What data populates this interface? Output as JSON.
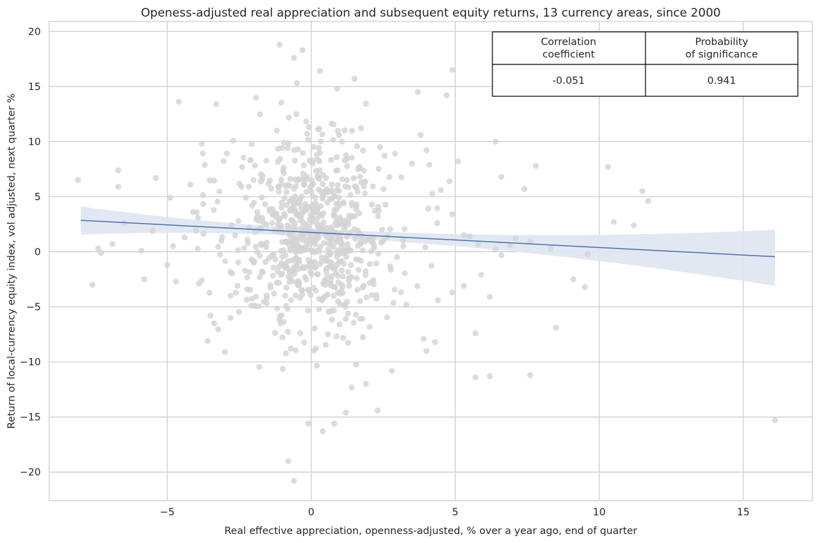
{
  "chart_data": {
    "type": "scatter",
    "title": "Openess-adjusted real appreciation and subsequent equity returns, 13 currency areas, since 2000",
    "xlabel": "Real effective appreciation, openness-adjusted, % over a year ago, end of quarter",
    "ylabel": "Return of local-currency equity index, vol adjusted, next quarter %",
    "xlim": [
      -9.1,
      17.4
    ],
    "ylim": [
      -22.6,
      20.9
    ],
    "xticks": [
      -5,
      0,
      5,
      10,
      15
    ],
    "yticks": [
      -20,
      -15,
      -10,
      -5,
      0,
      5,
      10,
      15,
      20
    ],
    "xtick_labels": [
      "−5",
      "0",
      "5",
      "10",
      "15"
    ],
    "ytick_labels": [
      "−20",
      "−15",
      "−10",
      "−5",
      "0",
      "5",
      "10",
      "15",
      "20"
    ],
    "grid": true,
    "point_color": "#d3d3d3",
    "line_color": "#4c72b0",
    "band_color": "#dfe5f1",
    "regression": {
      "x": [
        -8.0,
        16.1
      ],
      "y": [
        2.85,
        -0.45
      ],
      "ci_lower": [
        1.55,
        -3.1
      ],
      "ci_upper": [
        4.1,
        2.0
      ]
    },
    "outliers": [
      [
        -8.1,
        6.5
      ],
      [
        -7.6,
        -3.0
      ],
      [
        -7.4,
        0.3
      ],
      [
        -7.3,
        -0.1
      ],
      [
        -6.9,
        0.7
      ],
      [
        -6.7,
        7.4
      ],
      [
        -6.7,
        5.9
      ],
      [
        -6.5,
        2.6
      ],
      [
        -5.9,
        0.1
      ],
      [
        -5.8,
        -2.5
      ],
      [
        -5.5,
        1.9
      ],
      [
        -5.4,
        6.7
      ],
      [
        -5.0,
        -1.2
      ],
      [
        -4.9,
        4.9
      ],
      [
        -4.8,
        0.5
      ],
      [
        -4.7,
        -2.7
      ],
      [
        -4.6,
        13.6
      ],
      [
        -4.4,
        1.3
      ],
      [
        -4.2,
        6.1
      ],
      [
        -4.1,
        3.6
      ],
      [
        -4.0,
        1.9
      ],
      [
        -3.9,
        -2.9
      ],
      [
        -3.8,
        9.8
      ],
      [
        -3.8,
        -2.6
      ],
      [
        -3.7,
        7.9
      ],
      [
        -3.6,
        -8.1
      ],
      [
        -3.5,
        -5.8
      ],
      [
        -3.3,
        13.4
      ],
      [
        -3.0,
        -9.1
      ],
      [
        -2.8,
        -6.0
      ],
      [
        -0.8,
        -19.0
      ],
      [
        -0.6,
        -20.8
      ],
      [
        -1.1,
        18.8
      ],
      [
        -0.3,
        18.3
      ],
      [
        -0.6,
        17.6
      ],
      [
        0.3,
        16.4
      ],
      [
        1.5,
        15.7
      ],
      [
        0.9,
        14.8
      ],
      [
        -0.5,
        15.3
      ],
      [
        3.7,
        14.5
      ],
      [
        4.7,
        14.2
      ],
      [
        4.9,
        16.5
      ],
      [
        3.8,
        10.6
      ],
      [
        3.5,
        8.0
      ],
      [
        4.1,
        7.9
      ],
      [
        4.5,
        5.6
      ],
      [
        4.8,
        6.4
      ],
      [
        5.1,
        8.2
      ],
      [
        4.9,
        3.4
      ],
      [
        5.3,
        1.5
      ],
      [
        5.5,
        1.4
      ],
      [
        5.8,
        0.7
      ],
      [
        4.4,
        -4.4
      ],
      [
        4.9,
        -3.7
      ],
      [
        5.3,
        -3.1
      ],
      [
        3.3,
        -4.8
      ],
      [
        3.9,
        -7.9
      ],
      [
        4.3,
        -8.2
      ],
      [
        4.0,
        -9.0
      ],
      [
        2.8,
        -10.8
      ],
      [
        2.3,
        -14.4
      ],
      [
        1.2,
        -14.6
      ],
      [
        0.4,
        -16.3
      ],
      [
        -0.1,
        -15.6
      ],
      [
        0.8,
        -15.6
      ],
      [
        5.7,
        -11.4
      ],
      [
        6.2,
        -11.3
      ],
      [
        5.7,
        -7.4
      ],
      [
        5.9,
        -2.1
      ],
      [
        6.2,
        -4.1
      ],
      [
        6.4,
        0.2
      ],
      [
        6.6,
        -0.3
      ],
      [
        6.9,
        0.6
      ],
      [
        6.6,
        6.8
      ],
      [
        6.4,
        10.0
      ],
      [
        7.1,
        1.2
      ],
      [
        7.4,
        5.7
      ],
      [
        7.6,
        0.9
      ],
      [
        7.8,
        7.8
      ],
      [
        7.6,
        -11.2
      ],
      [
        8.3,
        0.3
      ],
      [
        8.5,
        -6.9
      ],
      [
        9.1,
        -2.5
      ],
      [
        9.5,
        -3.2
      ],
      [
        9.6,
        -0.2
      ],
      [
        10.3,
        7.7
      ],
      [
        10.5,
        2.7
      ],
      [
        11.2,
        2.4
      ],
      [
        11.5,
        5.5
      ],
      [
        11.7,
        4.6
      ],
      [
        16.1,
        -15.3
      ]
    ],
    "cluster_seed": 20,
    "cluster_count": 760,
    "table": {
      "headers": [
        [
          "Correlation",
          "coefficient"
        ],
        [
          "Probability",
          "of significance"
        ]
      ],
      "values": [
        "-0.051",
        "0.941"
      ]
    }
  }
}
